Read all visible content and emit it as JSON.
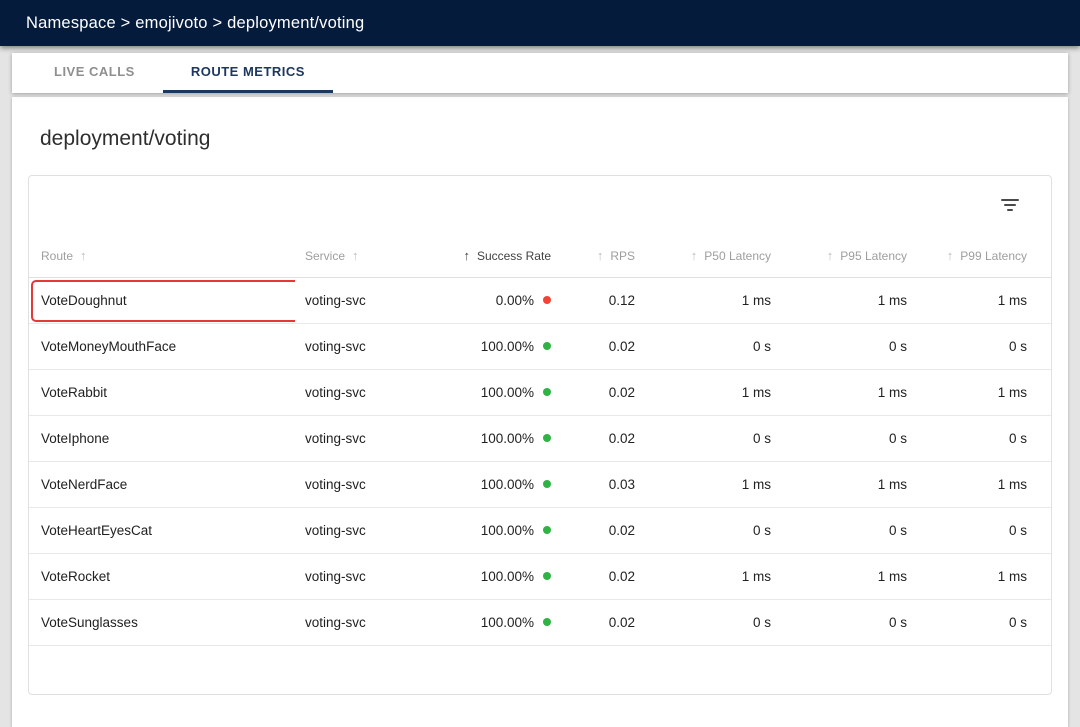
{
  "header": {
    "breadcrumb": "Namespace > emojivoto > deployment/voting"
  },
  "tabs": [
    {
      "label": "LIVE CALLS",
      "active": false
    },
    {
      "label": "ROUTE METRICS",
      "active": true
    }
  ],
  "page": {
    "title": "deployment/voting"
  },
  "toolbar": {
    "filter_icon": "filter-list-icon"
  },
  "table": {
    "columns": [
      {
        "label": "Route",
        "align": "left",
        "arrow_position": "after",
        "active": false
      },
      {
        "label": "Service",
        "align": "left",
        "arrow_position": "after",
        "active": false
      },
      {
        "label": "Success Rate",
        "align": "right",
        "arrow_position": "before",
        "active": true
      },
      {
        "label": "RPS",
        "align": "right",
        "arrow_position": "before",
        "active": false
      },
      {
        "label": "P50 Latency",
        "align": "right",
        "arrow_position": "before",
        "active": false
      },
      {
        "label": "P95 Latency",
        "align": "right",
        "arrow_position": "before",
        "active": false
      },
      {
        "label": "P99 Latency",
        "align": "right",
        "arrow_position": "before",
        "active": false
      }
    ],
    "sort_arrow_glyph": "↑",
    "rows": [
      {
        "route": "VoteDoughnut",
        "service": "voting-svc",
        "success_rate": "0.00%",
        "status": "error",
        "rps": "0.12",
        "p50": "1 ms",
        "p95": "1 ms",
        "p99": "1 ms",
        "highlighted": true
      },
      {
        "route": "VoteMoneyMouthFace",
        "service": "voting-svc",
        "success_rate": "100.00%",
        "status": "success",
        "rps": "0.02",
        "p50": "0 s",
        "p95": "0 s",
        "p99": "0 s",
        "highlighted": false
      },
      {
        "route": "VoteRabbit",
        "service": "voting-svc",
        "success_rate": "100.00%",
        "status": "success",
        "rps": "0.02",
        "p50": "1 ms",
        "p95": "1 ms",
        "p99": "1 ms",
        "highlighted": false
      },
      {
        "route": "VoteIphone",
        "service": "voting-svc",
        "success_rate": "100.00%",
        "status": "success",
        "rps": "0.02",
        "p50": "0 s",
        "p95": "0 s",
        "p99": "0 s",
        "highlighted": false
      },
      {
        "route": "VoteNerdFace",
        "service": "voting-svc",
        "success_rate": "100.00%",
        "status": "success",
        "rps": "0.03",
        "p50": "1 ms",
        "p95": "1 ms",
        "p99": "1 ms",
        "highlighted": false
      },
      {
        "route": "VoteHeartEyesCat",
        "service": "voting-svc",
        "success_rate": "100.00%",
        "status": "success",
        "rps": "0.02",
        "p50": "0 s",
        "p95": "0 s",
        "p99": "0 s",
        "highlighted": false
      },
      {
        "route": "VoteRocket",
        "service": "voting-svc",
        "success_rate": "100.00%",
        "status": "success",
        "rps": "0.02",
        "p50": "1 ms",
        "p95": "1 ms",
        "p99": "1 ms",
        "highlighted": false
      },
      {
        "route": "VoteSunglasses",
        "service": "voting-svc",
        "success_rate": "100.00%",
        "status": "success",
        "rps": "0.02",
        "p50": "0 s",
        "p95": "0 s",
        "p99": "0 s",
        "highlighted": false
      }
    ]
  },
  "colors": {
    "topbar_navy": "#051b3c",
    "tab_accent_navy": "#1c3760",
    "success_green": "#2fb344",
    "error_red": "#f44336",
    "highlight_border_red": "#e53935"
  }
}
